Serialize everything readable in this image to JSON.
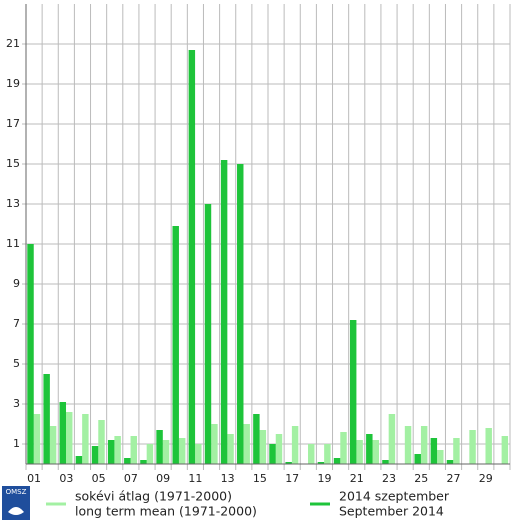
{
  "chart_data": {
    "type": "bar",
    "categories": [
      "01",
      null,
      "03",
      null,
      "05",
      null,
      "07",
      null,
      "09",
      null,
      "11",
      null,
      "13",
      null,
      "15",
      null,
      "17",
      null,
      "19",
      null,
      "21",
      null,
      "23",
      null,
      "25",
      null,
      "27",
      null,
      "29",
      null
    ],
    "series": [
      {
        "name": "sokévi átlag (1971-2000)",
        "name_en": "long term mean (1971-2000)",
        "color": "#a3f0a3",
        "values": [
          2.5,
          1.9,
          2.6,
          2.5,
          2.2,
          1.4,
          1.4,
          1.0,
          1.2,
          1.3,
          1.0,
          2.0,
          1.5,
          2.0,
          1.7,
          1.5,
          1.9,
          1.0,
          1.0,
          1.6,
          1.2,
          1.2,
          2.5,
          1.9,
          1.9,
          0.7,
          1.3,
          1.7,
          1.8,
          1.4
        ]
      },
      {
        "name": "2014 szeptember",
        "name_en": "September 2014",
        "color": "#1ec43a",
        "values": [
          11.0,
          4.5,
          3.1,
          0.4,
          0.9,
          1.2,
          0.3,
          0.2,
          1.7,
          11.9,
          20.7,
          13.0,
          15.2,
          15.0,
          2.5,
          1.0,
          0.1,
          0,
          0.1,
          0.3,
          7.2,
          1.5,
          0.2,
          0,
          0.5,
          1.3,
          0.2,
          0,
          0,
          0
        ]
      }
    ],
    "ylim": [
      0,
      23
    ],
    "yticks": [
      1,
      3,
      5,
      7,
      9,
      11,
      13,
      15,
      17,
      19,
      21
    ],
    "grid": true,
    "logo": "OMSZ"
  }
}
